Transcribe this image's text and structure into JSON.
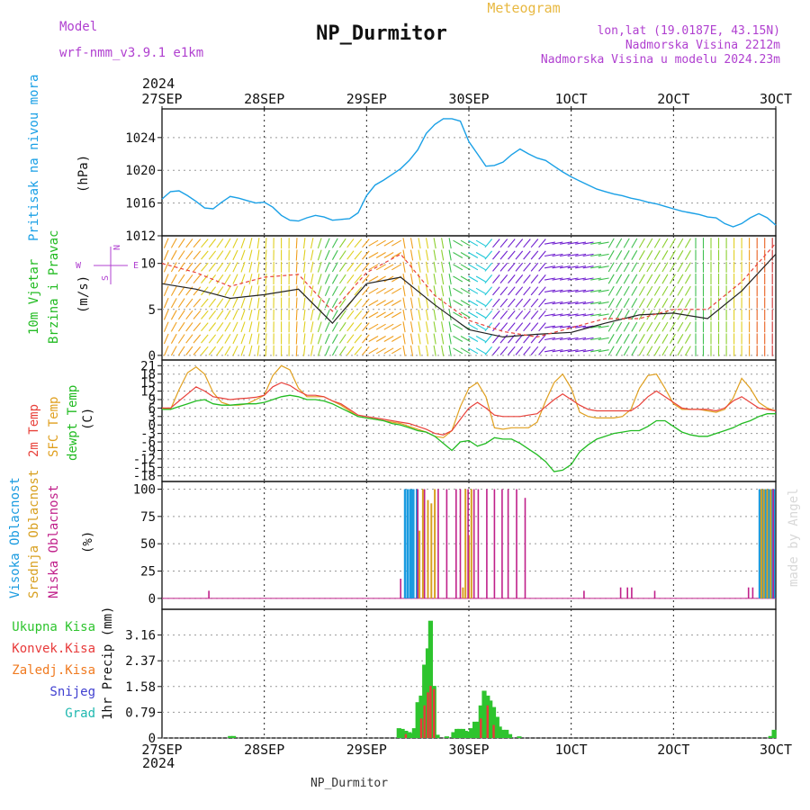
{
  "header": {
    "model_label": "Model",
    "model_name": "wrf-nmm_v3.9.1 e1km",
    "title": "NP_Durmitor",
    "meteogram": "Meteogram",
    "lonlat": "lon,lat (19.0187E, 43.15N)",
    "elevation": "Nadmorska Visina 2212m",
    "model_elevation": "Nadmorska Visina u modelu 2024.23m",
    "footer_station": "NP_Durmitor",
    "credit": "made by Angel"
  },
  "time_axis": {
    "year": "2024",
    "ticks": [
      "27SEP",
      "28SEP",
      "29SEP",
      "30SEP",
      "1OCT",
      "2OCT",
      "3OCT"
    ],
    "hours_total": 72
  },
  "colors": {
    "pressure": "#1aa0e6",
    "temp2m": "#e8413a",
    "sfc_temp": "#e0a020",
    "dewpt": "#22bb22",
    "high_cloud": "#1a9be0",
    "mid_cloud": "#d8a020",
    "low_cloud": "#c0208a",
    "total_precip": "#2ec42e",
    "conv_precip": "#e83a3a",
    "frozen_precip": "#f07a20",
    "snow": "#4040d0",
    "hail": "#20b8b0",
    "wind_speed": "#222222",
    "gust": "#e8413a",
    "direction_labels": "#b040d0"
  },
  "panels": {
    "pressure": {
      "label": "Pritisak na nivou mora",
      "unit": "(hPa)",
      "ticks": [
        "1012",
        "1016",
        "1020",
        "1024"
      ],
      "ylim": [
        1012,
        1027.5
      ]
    },
    "wind": {
      "label1": "10m Vjetar",
      "label2": "Brzina i Pravac",
      "unit": "(m/s)",
      "ticks": [
        "0",
        "5",
        "10"
      ],
      "ylim": [
        -0.5,
        13
      ],
      "compass": {
        "n": "N",
        "w": "W",
        "e": "E",
        "s": "S"
      }
    },
    "temp": {
      "label1": "2m Temp",
      "label2": "SFC Temp",
      "label3": "dewpt Temp",
      "unit": "(C)",
      "ticks": [
        "21",
        "18",
        "15",
        "12",
        "9",
        "6",
        "3",
        "0",
        "-3",
        "-6",
        "-9",
        "-12",
        "-15",
        "-18"
      ],
      "ylim": [
        -20,
        23
      ]
    },
    "cloud": {
      "label1": "Visoka Oblacnost",
      "label2": "Srednja Oblacnost",
      "label3": "Niska Oblacnost",
      "unit": "(%)",
      "ticks": [
        "0",
        "25",
        "50",
        "75",
        "100"
      ],
      "ylim": [
        -10,
        107
      ]
    },
    "precip": {
      "legend": [
        "Ukupna Kisa",
        "Konvek.Kisa",
        "Zaledj.Kisa",
        "Snijeg",
        "Grad"
      ],
      "unit": "1hr Precip (mm)",
      "ticks": [
        "0",
        "0.79",
        "1.58",
        "2.37",
        "3.16"
      ],
      "ylim": [
        0,
        3.95
      ]
    }
  },
  "chart_data": {
    "type": "line",
    "x_unit": "hours from 27SEP 00UTC",
    "pressure": {
      "x": [
        0,
        1,
        2,
        3,
        4,
        5,
        6,
        7,
        8,
        9,
        10,
        11,
        12,
        13,
        14,
        15,
        16,
        17,
        18,
        19,
        20,
        21,
        22,
        23,
        24,
        25,
        26,
        27,
        28,
        29,
        30,
        31,
        32,
        33,
        34,
        35,
        36,
        37,
        38,
        39,
        40,
        41,
        42,
        43,
        44,
        45,
        46,
        47,
        48,
        49,
        50,
        51,
        52,
        53,
        54,
        55,
        56,
        57,
        58,
        59,
        60,
        61,
        62,
        63,
        64,
        65,
        66,
        67,
        68,
        69,
        70,
        71,
        72
      ],
      "values": [
        1016.5,
        1017.4,
        1017.5,
        1016.9,
        1016.2,
        1015.4,
        1015.3,
        1016.1,
        1016.8,
        1016.6,
        1016.3,
        1016.0,
        1016.1,
        1015.5,
        1014.5,
        1013.9,
        1013.8,
        1014.2,
        1014.5,
        1014.3,
        1013.9,
        1014.0,
        1014.1,
        1014.8,
        1016.9,
        1018.2,
        1018.8,
        1019.5,
        1020.2,
        1021.2,
        1022.5,
        1024.5,
        1025.6,
        1026.3,
        1026.3,
        1026.0,
        1023.5,
        1022.0,
        1020.5,
        1020.6,
        1021.0,
        1021.9,
        1022.6,
        1022.0,
        1021.5,
        1021.2,
        1020.5,
        1019.8,
        1019.2,
        1018.7,
        1018.2,
        1017.7,
        1017.4,
        1017.1,
        1016.9,
        1016.6,
        1016.4,
        1016.1,
        1015.9,
        1015.6,
        1015.3,
        1015.0,
        1014.8,
        1014.6,
        1014.3,
        1014.2,
        1013.5,
        1013.1,
        1013.5,
        1014.2,
        1014.7,
        1014.2,
        1013.3
      ]
    },
    "wind": {
      "x": [
        0,
        4,
        8,
        12,
        16,
        20,
        24,
        28,
        32,
        36,
        40,
        44,
        48,
        52,
        56,
        60,
        64,
        68,
        72
      ],
      "speed": [
        7.8,
        7.2,
        6.2,
        6.6,
        7.2,
        3.5,
        7.8,
        8.5,
        5.5,
        2.8,
        2.0,
        2.3,
        2.5,
        3.5,
        4.4,
        4.6,
        4.0,
        7.0,
        11.0
      ],
      "gust": [
        10.0,
        9.0,
        7.5,
        8.5,
        8.8,
        4.8,
        9.0,
        11.0,
        6.5,
        3.8,
        2.6,
        2.0,
        3.0,
        4.0,
        4.0,
        5.0,
        5.0,
        8.0,
        12.2
      ]
    },
    "temperature": {
      "x": [
        0,
        1,
        2,
        3,
        4,
        5,
        6,
        7,
        8,
        9,
        10,
        11,
        12,
        13,
        14,
        15,
        16,
        17,
        18,
        19,
        20,
        21,
        22,
        23,
        24,
        25,
        26,
        27,
        28,
        29,
        30,
        31,
        32,
        33,
        34,
        35,
        36,
        37,
        38,
        39,
        40,
        41,
        42,
        43,
        44,
        45,
        46,
        47,
        48,
        49,
        50,
        51,
        52,
        53,
        54,
        55,
        56,
        57,
        58,
        59,
        60,
        61,
        62,
        63,
        64,
        65,
        66,
        67,
        68,
        69,
        70,
        71,
        72
      ],
      "t2m": [
        6.0,
        6.0,
        8.5,
        11.0,
        13.5,
        12.0,
        10.0,
        9.5,
        9.0,
        9.3,
        9.5,
        9.8,
        10.5,
        13.5,
        15.0,
        14.0,
        12.0,
        10.5,
        10.5,
        10.0,
        8.5,
        7.5,
        5.5,
        3.5,
        3.0,
        2.5,
        2.0,
        1.5,
        1.0,
        0.5,
        -0.5,
        -1.5,
        -3.0,
        -3.5,
        -2.0,
        2.0,
        6.0,
        8.0,
        6.0,
        3.5,
        3.0,
        3.0,
        3.0,
        3.5,
        4.0,
        6.5,
        9.0,
        11.0,
        9.0,
        7.0,
        5.5,
        5.0,
        5.0,
        5.0,
        5.0,
        5.0,
        7.0,
        10.0,
        12.0,
        10.0,
        8.0,
        6.0,
        5.5,
        5.5,
        5.5,
        5.0,
        6.0,
        8.5,
        10.0,
        8.0,
        6.0,
        5.5,
        5.0
      ],
      "sfc": [
        6.0,
        5.5,
        12.5,
        18.5,
        20.5,
        18.0,
        11.5,
        8.0,
        7.0,
        7.0,
        7.5,
        9.0,
        10.5,
        17.5,
        21.0,
        19.5,
        13.0,
        10.0,
        10.0,
        10.0,
        8.5,
        7.0,
        5.0,
        3.0,
        2.5,
        2.0,
        1.5,
        1.0,
        0.5,
        -0.5,
        -1.5,
        -2.5,
        -4.0,
        -4.5,
        -2.0,
        6.5,
        13.0,
        15.0,
        10.0,
        -1.0,
        -1.5,
        -1.0,
        -1.0,
        -1.0,
        1.0,
        8.5,
        15.0,
        18.0,
        13.0,
        4.5,
        3.0,
        2.5,
        2.5,
        2.5,
        3.0,
        5.5,
        13.0,
        17.5,
        18.0,
        13.0,
        7.5,
        5.5,
        5.5,
        5.5,
        5.0,
        4.5,
        5.5,
        9.5,
        16.5,
        13.0,
        8.0,
        6.0,
        5.0
      ],
      "dewpt": [
        5.5,
        5.5,
        6.5,
        7.5,
        8.5,
        9.0,
        7.5,
        7.0,
        7.0,
        7.3,
        7.5,
        7.5,
        8.0,
        9.0,
        10.0,
        10.5,
        10.0,
        9.0,
        9.0,
        8.5,
        7.5,
        6.0,
        4.5,
        3.0,
        2.5,
        2.0,
        1.5,
        0.5,
        0.0,
        -1.0,
        -2.0,
        -2.5,
        -4.0,
        -6.5,
        -9.0,
        -6.0,
        -5.5,
        -7.5,
        -6.5,
        -4.5,
        -5.0,
        -5.0,
        -6.5,
        -8.5,
        -10.5,
        -13.0,
        -16.5,
        -16.0,
        -14.0,
        -9.5,
        -7.0,
        -5.0,
        -4.0,
        -3.0,
        -2.5,
        -2.0,
        -2.0,
        -0.5,
        1.5,
        1.5,
        -0.5,
        -2.5,
        -3.5,
        -4.0,
        -4.0,
        -3.0,
        -2.0,
        -1.0,
        0.5,
        1.5,
        3.0,
        4.0,
        4.0
      ]
    },
    "cloud": {
      "high": [
        [
          28.5,
          100
        ],
        [
          28.8,
          100
        ],
        [
          29.1,
          100
        ],
        [
          29.3,
          100
        ],
        [
          29.5,
          100
        ],
        [
          29.9,
          100
        ],
        [
          70.1,
          100
        ],
        [
          70.4,
          100
        ],
        [
          70.7,
          100
        ],
        [
          70.9,
          100
        ],
        [
          71.2,
          100
        ],
        [
          71.5,
          100
        ],
        [
          71.8,
          100
        ]
      ],
      "mid": [
        [
          30.2,
          62
        ],
        [
          30.6,
          100
        ],
        [
          31.2,
          90
        ],
        [
          31.6,
          87
        ],
        [
          32.0,
          100
        ],
        [
          35.3,
          10
        ],
        [
          35.6,
          100
        ],
        [
          36.0,
          58
        ],
        [
          36.3,
          100
        ],
        [
          70.3,
          100
        ],
        [
          70.6,
          100
        ],
        [
          71.0,
          100
        ],
        [
          71.4,
          100
        ]
      ],
      "low": [
        [
          5.5,
          7
        ],
        [
          28.0,
          18
        ],
        [
          30.0,
          100
        ],
        [
          30.8,
          100
        ],
        [
          32.4,
          100
        ],
        [
          33.4,
          100
        ],
        [
          34.5,
          100
        ],
        [
          35.0,
          100
        ],
        [
          35.9,
          100
        ],
        [
          36.6,
          100
        ],
        [
          37.1,
          100
        ],
        [
          38.1,
          100
        ],
        [
          39.0,
          100
        ],
        [
          39.9,
          100
        ],
        [
          40.6,
          100
        ],
        [
          41.6,
          100
        ],
        [
          42.6,
          92
        ],
        [
          49.5,
          7
        ],
        [
          53.8,
          10
        ],
        [
          54.6,
          10
        ],
        [
          55.1,
          10
        ],
        [
          57.8,
          7
        ],
        [
          68.8,
          10
        ],
        [
          69.3,
          10
        ],
        [
          71.7,
          100
        ]
      ]
    },
    "precip": {
      "total": [
        [
          8.0,
          0.06
        ],
        [
          8.4,
          0.06
        ],
        [
          27.8,
          0.3
        ],
        [
          28.2,
          0.28
        ],
        [
          28.6,
          0.22
        ],
        [
          29.0,
          0.18
        ],
        [
          29.4,
          0.15
        ],
        [
          29.6,
          0.3
        ],
        [
          30.0,
          1.1
        ],
        [
          30.4,
          1.3
        ],
        [
          30.8,
          2.25
        ],
        [
          31.2,
          2.75
        ],
        [
          31.5,
          3.6
        ],
        [
          31.9,
          1.6
        ],
        [
          32.3,
          0.1
        ],
        [
          33.4,
          0.05
        ],
        [
          34.2,
          0.18
        ],
        [
          34.6,
          0.28
        ],
        [
          34.9,
          0.28
        ],
        [
          35.3,
          0.28
        ],
        [
          35.6,
          0.22
        ],
        [
          36.0,
          0.2
        ],
        [
          36.3,
          0.3
        ],
        [
          36.7,
          0.5
        ],
        [
          37.1,
          0.5
        ],
        [
          37.4,
          1.0
        ],
        [
          37.8,
          1.45
        ],
        [
          38.2,
          1.3
        ],
        [
          38.5,
          1.15
        ],
        [
          38.9,
          0.95
        ],
        [
          39.3,
          0.65
        ],
        [
          39.6,
          0.35
        ],
        [
          40.0,
          0.25
        ],
        [
          40.4,
          0.25
        ],
        [
          40.8,
          0.12
        ],
        [
          41.9,
          0.05
        ],
        [
          71.4,
          0.06
        ],
        [
          71.8,
          0.25
        ]
      ],
      "conv": [
        [
          28.6,
          0.12
        ],
        [
          30.4,
          0.6
        ],
        [
          30.8,
          1.0
        ],
        [
          31.2,
          1.4
        ],
        [
          31.5,
          1.6
        ],
        [
          31.9,
          1.5
        ],
        [
          37.4,
          0.6
        ],
        [
          38.2,
          1.0
        ],
        [
          38.9,
          0.4
        ]
      ]
    }
  }
}
